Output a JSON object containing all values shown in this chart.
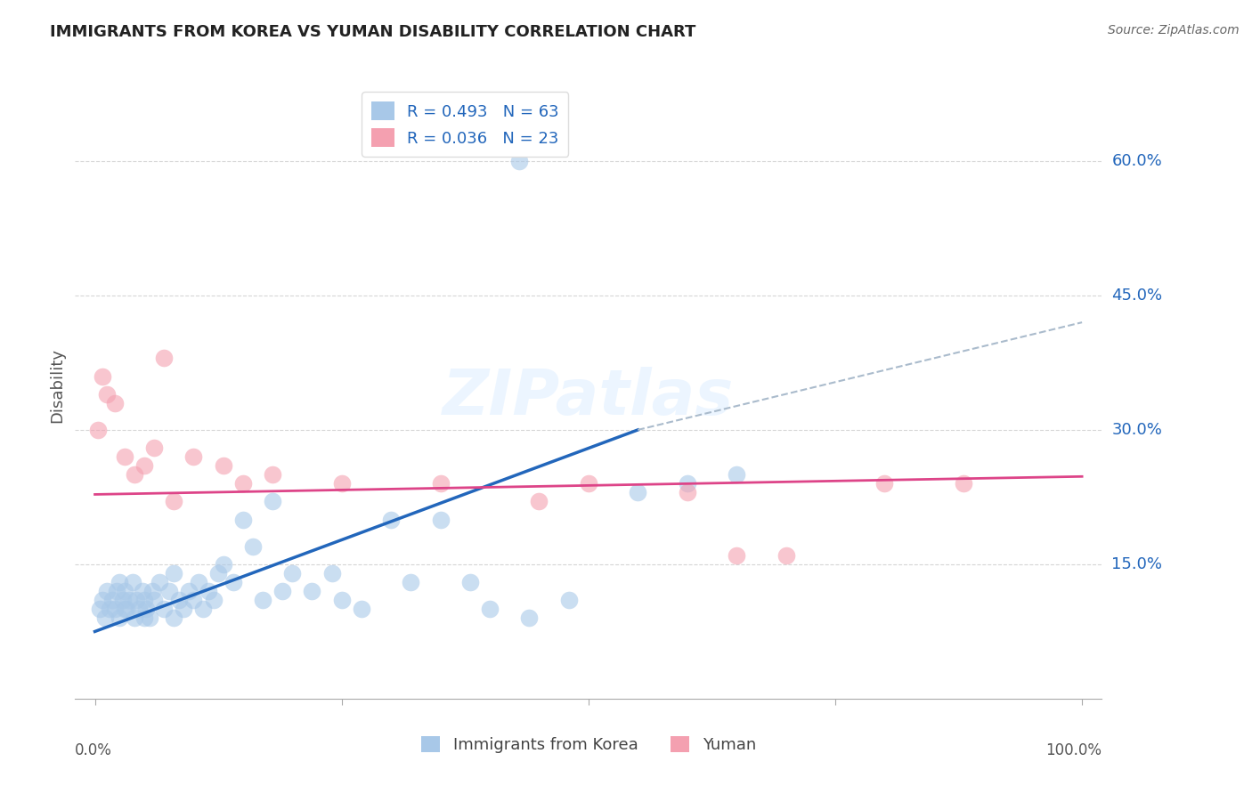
{
  "title": "IMMIGRANTS FROM KOREA VS YUMAN DISABILITY CORRELATION CHART",
  "source": "Source: ZipAtlas.com",
  "ylabel": "Disability",
  "right_ytick_labels": [
    "60.0%",
    "45.0%",
    "30.0%",
    "15.0%"
  ],
  "right_ytick_values": [
    0.6,
    0.45,
    0.3,
    0.15
  ],
  "legend_blue_label": "R = 0.493   N = 63",
  "legend_pink_label": "R = 0.036   N = 23",
  "blue_color": "#a8c8e8",
  "pink_color": "#f4a0b0",
  "blue_line_color": "#2266bb",
  "pink_line_color": "#dd4488",
  "dashed_line_color": "#aabbcc",
  "background_color": "#ffffff",
  "grid_color": "#cccccc",
  "title_color": "#222222",
  "source_color": "#666666",
  "blue_scatter_x": [
    0.5,
    0.8,
    1.0,
    1.2,
    1.5,
    1.8,
    2.0,
    2.2,
    2.5,
    2.5,
    2.8,
    3.0,
    3.0,
    3.2,
    3.5,
    3.8,
    4.0,
    4.2,
    4.5,
    4.8,
    5.0,
    5.0,
    5.2,
    5.5,
    5.8,
    6.0,
    6.5,
    7.0,
    7.5,
    8.0,
    8.0,
    8.5,
    9.0,
    9.5,
    10.0,
    10.5,
    11.0,
    11.5,
    12.0,
    12.5,
    13.0,
    14.0,
    15.0,
    16.0,
    17.0,
    18.0,
    19.0,
    20.0,
    22.0,
    24.0,
    25.0,
    27.0,
    30.0,
    32.0,
    35.0,
    38.0,
    40.0,
    44.0,
    48.0,
    55.0,
    60.0,
    65.0,
    43.0
  ],
  "blue_scatter_y": [
    0.1,
    0.11,
    0.09,
    0.12,
    0.1,
    0.11,
    0.1,
    0.12,
    0.09,
    0.13,
    0.11,
    0.1,
    0.12,
    0.1,
    0.11,
    0.13,
    0.09,
    0.11,
    0.1,
    0.12,
    0.09,
    0.11,
    0.1,
    0.09,
    0.12,
    0.11,
    0.13,
    0.1,
    0.12,
    0.09,
    0.14,
    0.11,
    0.1,
    0.12,
    0.11,
    0.13,
    0.1,
    0.12,
    0.11,
    0.14,
    0.15,
    0.13,
    0.2,
    0.17,
    0.11,
    0.22,
    0.12,
    0.14,
    0.12,
    0.14,
    0.11,
    0.1,
    0.2,
    0.13,
    0.2,
    0.13,
    0.1,
    0.09,
    0.11,
    0.23,
    0.24,
    0.25,
    0.6
  ],
  "pink_scatter_x": [
    0.3,
    0.8,
    1.2,
    2.0,
    3.0,
    4.0,
    5.0,
    6.0,
    8.0,
    10.0,
    13.0,
    15.0,
    18.0,
    25.0,
    35.0,
    45.0,
    50.0,
    60.0,
    65.0,
    70.0,
    80.0,
    88.0,
    7.0
  ],
  "pink_scatter_y": [
    0.3,
    0.36,
    0.34,
    0.33,
    0.27,
    0.25,
    0.26,
    0.28,
    0.22,
    0.27,
    0.26,
    0.24,
    0.25,
    0.24,
    0.24,
    0.22,
    0.24,
    0.23,
    0.16,
    0.16,
    0.24,
    0.24,
    0.38
  ],
  "blue_line_x": [
    0.0,
    55.0
  ],
  "blue_line_y": [
    0.075,
    0.3
  ],
  "pink_line_x": [
    0.0,
    100.0
  ],
  "pink_line_y": [
    0.228,
    0.248
  ],
  "dashed_line_x": [
    55.0,
    100.0
  ],
  "dashed_line_y": [
    0.3,
    0.42
  ],
  "xlim": [
    -2.0,
    102.0
  ],
  "ylim": [
    0.0,
    0.7
  ],
  "watermark": "ZIPatlas"
}
